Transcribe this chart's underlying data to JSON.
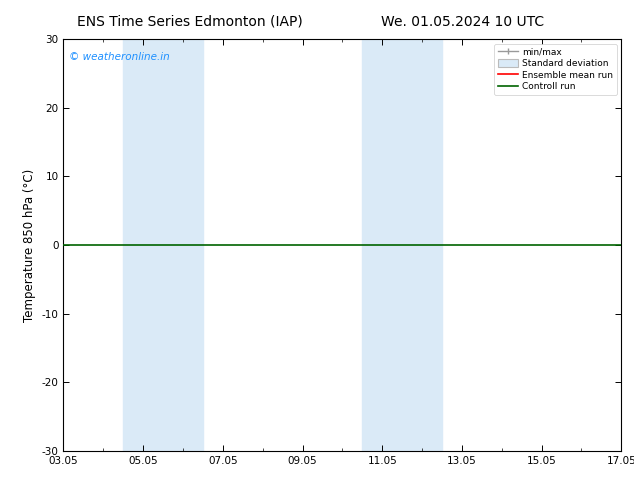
{
  "title_left": "ENS Time Series Edmonton (IAP)",
  "title_right": "We. 01.05.2024 10 UTC",
  "ylabel": "Temperature 850 hPa (°C)",
  "ylim": [
    -30,
    30
  ],
  "yticks": [
    -30,
    -20,
    -10,
    0,
    10,
    20,
    30
  ],
  "xtick_labels": [
    "03.05",
    "05.05",
    "07.05",
    "09.05",
    "11.05",
    "13.05",
    "15.05",
    "17.05"
  ],
  "xtick_positions": [
    0,
    2,
    4,
    6,
    8,
    10,
    12,
    14
  ],
  "xlim": [
    0,
    14
  ],
  "shaded_bands": [
    {
      "x_start": 1.5,
      "x_end": 3.5
    },
    {
      "x_start": 7.5,
      "x_end": 9.5
    }
  ],
  "shaded_color": "#daeaf7",
  "hline_y": 0,
  "hline_color": "#006400",
  "hline_linewidth": 1.2,
  "watermark_text": "© weatheronline.in",
  "watermark_color": "#1e90ff",
  "legend_labels": [
    "min/max",
    "Standard deviation",
    "Ensemble mean run",
    "Controll run"
  ],
  "legend_colors": [
    "#999999",
    "#bbbbbb",
    "#ff0000",
    "#006400"
  ],
  "background_color": "#ffffff",
  "title_fontsize": 10,
  "tick_fontsize": 7.5,
  "ylabel_fontsize": 8.5
}
